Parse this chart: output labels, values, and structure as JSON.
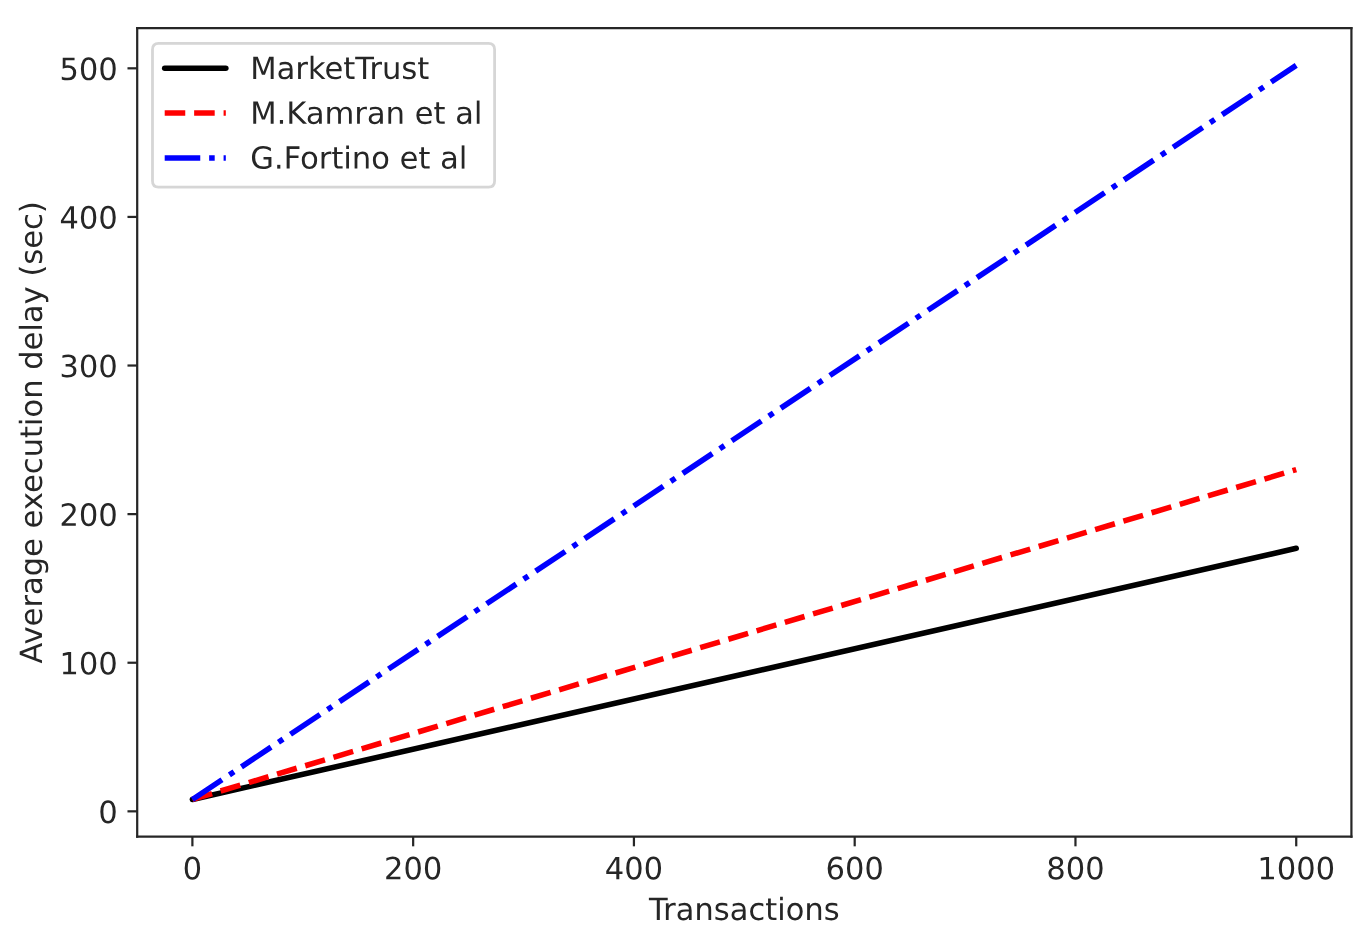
{
  "chart_data": {
    "type": "line",
    "xlabel": "Transactions",
    "ylabel": "Average execution delay (sec)",
    "x": [
      0,
      1000
    ],
    "series": [
      {
        "name": "MarketTrust",
        "color": "#000000",
        "line_style": "solid",
        "values": [
          8,
          177
        ]
      },
      {
        "name": "M.Kamran et al",
        "color": "#ff0000",
        "line_style": "dashed",
        "values": [
          8,
          230
        ]
      },
      {
        "name": "G.Fortino et al",
        "color": "#0000ff",
        "line_style": "dashdot",
        "values": [
          8,
          502
        ]
      }
    ],
    "xlim": [
      -50,
      1050
    ],
    "ylim": [
      -17,
      527
    ],
    "xticks": [
      0,
      200,
      400,
      600,
      800,
      1000
    ],
    "yticks": [
      0,
      100,
      200,
      300,
      400,
      500
    ],
    "grid": false,
    "legend": "top left",
    "marker": "none"
  }
}
